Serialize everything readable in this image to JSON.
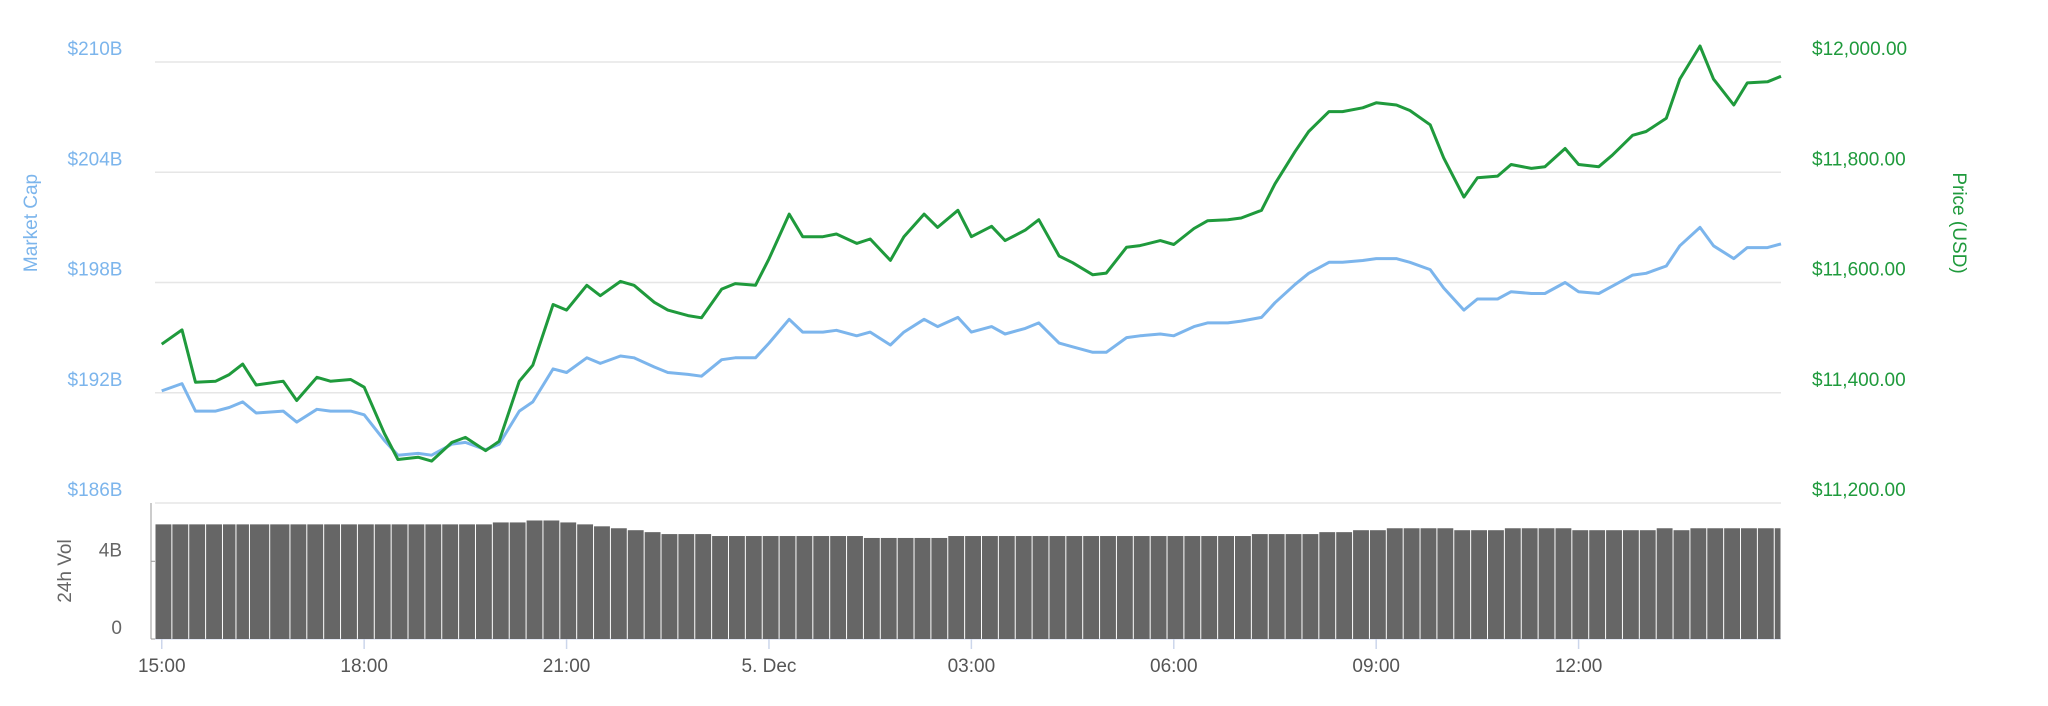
{
  "chart_data": {
    "type": "line",
    "y_label": "Market Cap",
    "y2_label": "Price (USD)",
    "y3_label": "24h Vol",
    "x": [
      0,
      0.3,
      0.5,
      0.8,
      1.0,
      1.2,
      1.4,
      1.8,
      2.0,
      2.3,
      2.5,
      2.8,
      3.0,
      3.3,
      3.5,
      3.8,
      4.0,
      4.3,
      4.5,
      4.8,
      5.0,
      5.3,
      5.5,
      5.8,
      6.0,
      6.3,
      6.5,
      6.8,
      7.0,
      7.3,
      7.5,
      7.8,
      8.0,
      8.3,
      8.5,
      8.8,
      9.0,
      9.3,
      9.5,
      9.8,
      10.0,
      10.3,
      10.5,
      10.8,
      11.0,
      11.3,
      11.5,
      11.8,
      12.0,
      12.3,
      12.5,
      12.8,
      13.0,
      13.3,
      13.5,
      13.8,
      14.0,
      14.3,
      14.5,
      14.8,
      15.0,
      15.3,
      15.5,
      15.8,
      16.0,
      16.3,
      16.5,
      16.8,
      17.0,
      17.3,
      17.5,
      17.8,
      18.0,
      18.3,
      18.5,
      18.8,
      19.0,
      19.3,
      19.5,
      19.8,
      20.0,
      20.3,
      20.5,
      20.8,
      21.0,
      21.3,
      21.5,
      21.8,
      22.0,
      22.3,
      22.5,
      22.8,
      23.0,
      23.3,
      23.5,
      23.8,
      24.0
    ],
    "series": [
      {
        "color": "#7cb5ec",
        "axis": "y",
        "values": [
          192.1,
          192.5,
          191.0,
          191.0,
          191.2,
          191.5,
          190.9,
          191.0,
          190.4,
          191.1,
          191.0,
          191.0,
          190.8,
          189.4,
          188.6,
          188.7,
          188.6,
          189.2,
          189.3,
          188.9,
          189.2,
          191.0,
          191.5,
          193.3,
          193.1,
          193.9,
          193.6,
          194.0,
          193.9,
          193.4,
          193.1,
          193.0,
          192.9,
          193.8,
          193.9,
          193.9,
          194.7,
          196.0,
          195.3,
          195.3,
          195.4,
          195.1,
          195.3,
          194.6,
          195.3,
          196.0,
          195.6,
          196.1,
          195.3,
          195.6,
          195.2,
          195.5,
          195.8,
          194.7,
          194.5,
          194.2,
          194.2,
          195.0,
          195.1,
          195.2,
          195.1,
          195.6,
          195.8,
          195.8,
          195.9,
          196.1,
          196.9,
          197.9,
          198.5,
          199.1,
          199.1,
          199.2,
          199.3,
          199.3,
          199.1,
          198.7,
          197.7,
          196.5,
          197.1,
          197.1,
          197.5,
          197.4,
          197.4,
          198.0,
          197.5,
          197.4,
          197.8,
          198.4,
          198.5,
          198.9,
          200.0,
          201.0,
          200.0,
          199.3,
          199.9,
          199.9,
          200.1
        ]
      },
      {
        "color": "#1f9a3c",
        "axis": "y2",
        "values": [
          11488,
          11514,
          11419,
          11421,
          11433,
          11452,
          11414,
          11421,
          11386,
          11428,
          11421,
          11424,
          11410,
          11326,
          11279,
          11283,
          11276,
          11310,
          11319,
          11295,
          11312,
          11421,
          11450,
          11560,
          11550,
          11595,
          11576,
          11602,
          11595,
          11564,
          11550,
          11540,
          11536,
          11588,
          11598,
          11595,
          11643,
          11724,
          11683,
          11683,
          11688,
          11671,
          11679,
          11640,
          11683,
          11724,
          11700,
          11731,
          11683,
          11702,
          11676,
          11695,
          11714,
          11648,
          11636,
          11614,
          11617,
          11664,
          11667,
          11676,
          11669,
          11698,
          11712,
          11714,
          11717,
          11731,
          11779,
          11838,
          11874,
          11910,
          11910,
          11917,
          11926,
          11922,
          11912,
          11886,
          11826,
          11755,
          11790,
          11793,
          11814,
          11807,
          11810,
          11843,
          11814,
          11810,
          11831,
          11867,
          11874,
          11898,
          11969,
          12029,
          11969,
          11922,
          11962,
          11964,
          11974
        ]
      },
      {
        "color": "#666666",
        "axis": "y3",
        "type": "bar",
        "values": [
          5.9,
          5.9,
          5.9,
          5.9,
          5.9,
          5.9,
          5.9,
          5.9,
          5.9,
          5.9,
          5.9,
          5.9,
          5.9,
          5.9,
          5.9,
          5.9,
          5.9,
          5.9,
          5.9,
          5.9,
          6.0,
          6.0,
          6.1,
          6.1,
          6.0,
          5.9,
          5.8,
          5.7,
          5.6,
          5.5,
          5.4,
          5.4,
          5.4,
          5.3,
          5.3,
          5.3,
          5.3,
          5.3,
          5.3,
          5.3,
          5.3,
          5.3,
          5.2,
          5.2,
          5.2,
          5.2,
          5.2,
          5.3,
          5.3,
          5.3,
          5.3,
          5.3,
          5.3,
          5.3,
          5.3,
          5.3,
          5.3,
          5.3,
          5.3,
          5.3,
          5.3,
          5.3,
          5.3,
          5.3,
          5.3,
          5.4,
          5.4,
          5.4,
          5.4,
          5.5,
          5.5,
          5.6,
          5.6,
          5.7,
          5.7,
          5.7,
          5.7,
          5.6,
          5.6,
          5.6,
          5.7,
          5.7,
          5.7,
          5.7,
          5.6,
          5.6,
          5.6,
          5.6,
          5.6,
          5.7,
          5.6,
          5.7,
          5.7,
          5.7,
          5.7,
          5.7,
          5.7
        ]
      }
    ],
    "xlim": [
      -0.1,
      24
    ],
    "xticks": [
      {
        "value": 0,
        "label": "15:00"
      },
      {
        "value": 3,
        "label": "18:00"
      },
      {
        "value": 6,
        "label": "21:00"
      },
      {
        "value": 9,
        "label": "5. Dec"
      },
      {
        "value": 12,
        "label": "03:00"
      },
      {
        "value": 15,
        "label": "06:00"
      },
      {
        "value": 18,
        "label": "09:00"
      },
      {
        "value": 21,
        "label": "12:00"
      }
    ],
    "ylim": [
      186,
      210
    ],
    "yticks": [
      {
        "value": 186,
        "label": "$186B"
      },
      {
        "value": 192,
        "label": "$192B"
      },
      {
        "value": 198,
        "label": "$198B"
      },
      {
        "value": 204,
        "label": "$204B"
      },
      {
        "value": 210,
        "label": "$210B"
      }
    ],
    "y2lim": [
      11200,
      12000
    ],
    "y2ticks": [
      {
        "value": 11200,
        "label": "$11,200.00"
      },
      {
        "value": 11400,
        "label": "$11,400.00"
      },
      {
        "value": 11600,
        "label": "$11,600.00"
      },
      {
        "value": 11800,
        "label": "$11,800.00"
      },
      {
        "value": 12000,
        "label": "$12,000.00"
      }
    ],
    "y3lim": [
      0,
      7
    ],
    "y3ticks": [
      0,
      {
        "value": 4,
        "label": "4B"
      }
    ],
    "grid": true
  }
}
